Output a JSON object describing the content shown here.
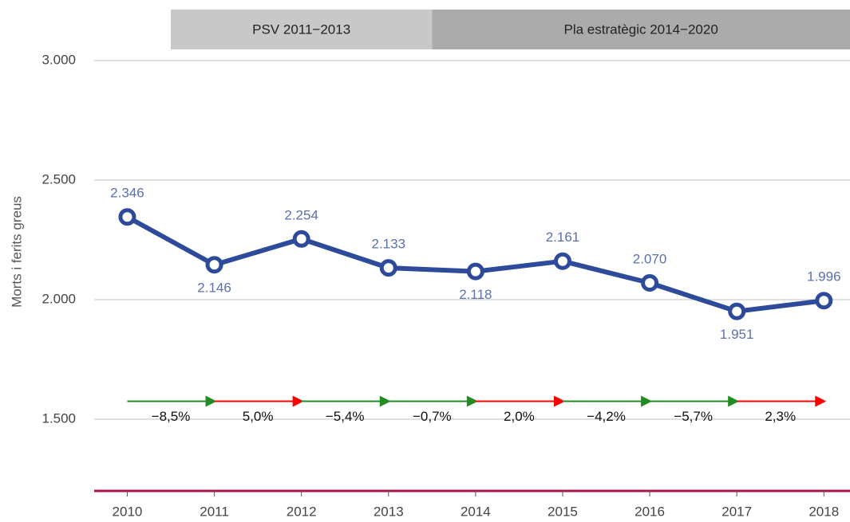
{
  "chart_data": {
    "type": "line",
    "y_label": "Morts i ferits greus",
    "x": [
      2010,
      2011,
      2012,
      2013,
      2014,
      2015,
      2016,
      2017,
      2018
    ],
    "series": [
      {
        "color": "#2e4a9a",
        "label_color": "#5b70ad",
        "values": [
          2346,
          2146,
          2254,
          2133,
          2118,
          2161,
          2070,
          1951,
          1996
        ],
        "value_labels": [
          "2.346",
          "2.146",
          "2.254",
          "2.133",
          "2.118",
          "2.161",
          "2.070",
          "1.951",
          "1.996"
        ]
      }
    ],
    "xlim": [
      2009.62,
      2018.3
    ],
    "xticks": [
      2010,
      2011,
      2012,
      2013,
      2014,
      2015,
      2016,
      2017,
      2018
    ],
    "ylim": [
      1200,
      3000
    ],
    "yticks": [
      {
        "value": 1500,
        "label": "1.500"
      },
      {
        "value": 2000,
        "label": "2.000"
      },
      {
        "value": 2500,
        "label": "2.500"
      },
      {
        "value": 3000,
        "label": "3.000"
      }
    ],
    "grid": true,
    "periods": [
      {
        "label": "PSV 2011−2013",
        "start": 2010.5,
        "end": 2013.5,
        "color": "#c8c8c8"
      },
      {
        "label": "Pla estratègic 2014−2020",
        "start": 2013.5,
        "end": 2018.3,
        "color": "#ababab"
      }
    ],
    "changes": {
      "level": 1575,
      "values": [
        -8.5,
        5.0,
        -5.4,
        -0.7,
        2.0,
        -4.2,
        -5.7,
        2.3
      ],
      "value_labels": [
        "−8,5%",
        "5,0%",
        "−5,4%",
        "−0,7%",
        "2,0%",
        "−4,2%",
        "−5,7%",
        "2,3%"
      ],
      "decrease_color": "#228b22",
      "increase_color": "#ff0000"
    }
  }
}
